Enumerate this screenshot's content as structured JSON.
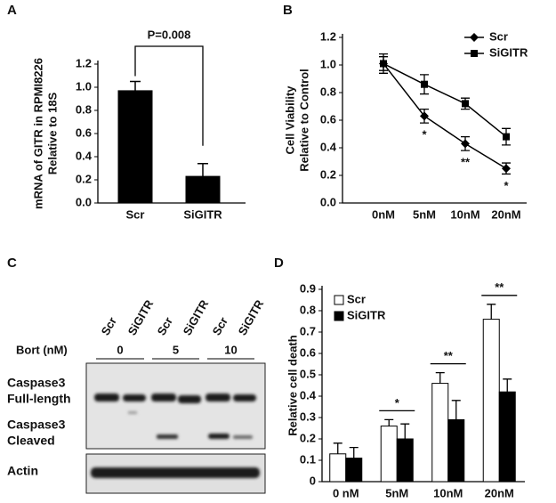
{
  "panel_labels": [
    "A",
    "B",
    "C",
    "D"
  ],
  "chart_data": [
    {
      "type": "bar",
      "ylabel": [
        "mRNA of GITR in RPMI8226",
        "Relative to 18S"
      ],
      "categories": [
        "Scr",
        "SiGITR"
      ],
      "values": [
        0.97,
        0.23
      ],
      "errors": [
        0.08,
        0.11
      ],
      "color": "#000000",
      "ylim": [
        0,
        1.2
      ],
      "yticks": [
        {
          "value": 0,
          "label": "0.0"
        },
        0.2,
        0.4,
        0.6,
        0.8,
        {
          "value": 1,
          "label": "1.0"
        },
        1.2
      ],
      "annotation": "P=0.008"
    },
    {
      "type": "line",
      "ylabel": [
        "Cell Viability",
        "Relative to Control"
      ],
      "categories": [
        "0nM",
        "5nM",
        "10nM",
        "20nM"
      ],
      "series": [
        {
          "name": "Scr",
          "color": "#000000",
          "marker": "diamond",
          "values": [
            1.01,
            0.63,
            0.43,
            0.25
          ],
          "errors": [
            0.05,
            0.05,
            0.05,
            0.04
          ]
        },
        {
          "name": "SiGITR",
          "color": "#000000",
          "marker": "square",
          "values": [
            1.01,
            0.86,
            0.72,
            0.48
          ],
          "errors": [
            0.07,
            0.07,
            0.04,
            0.06
          ]
        }
      ],
      "ylim": [
        0,
        1.2
      ],
      "yticks": [
        {
          "value": 0,
          "label": "0.0"
        },
        0.2,
        0.4,
        0.6,
        0.8,
        {
          "value": 1,
          "label": "1.0"
        },
        1.2
      ],
      "legend": "upper right",
      "annotations": [
        {
          "text": "*",
          "x": "5nM"
        },
        {
          "text": "**",
          "x": "10nM"
        },
        {
          "text": "*",
          "x": "20nM"
        }
      ]
    },
    {
      "type": "bar",
      "ylabel": [
        "Relative cell death"
      ],
      "categories": [
        "0 nM",
        "5nM",
        "10nM",
        "20nM"
      ],
      "series": [
        {
          "name": "Scr",
          "color": "#ffffff",
          "values": [
            0.13,
            0.26,
            0.46,
            0.76
          ],
          "errors": [
            0.05,
            0.03,
            0.05,
            0.07
          ]
        },
        {
          "name": "SiGITR",
          "color": "#000000",
          "values": [
            0.11,
            0.2,
            0.29,
            0.42
          ],
          "errors": [
            0.05,
            0.07,
            0.09,
            0.06
          ]
        }
      ],
      "ylim": [
        0,
        0.9
      ],
      "yticks": [
        0,
        0.1,
        0.2,
        0.3,
        0.4,
        0.5,
        0.6,
        0.7,
        0.8,
        0.9
      ],
      "legend": "upper left",
      "annotations": [
        {
          "text": "*",
          "x": "5nM"
        },
        {
          "text": "**",
          "x": "10nM"
        },
        {
          "text": "**",
          "x": "20nM"
        }
      ]
    }
  ],
  "blot": {
    "lanes": [
      "Scr",
      "SiGITR",
      "Scr",
      "SiGITR",
      "Scr",
      "SiGITR"
    ],
    "treatment": "Bort (nM)",
    "doses": [
      "0",
      "5",
      "10"
    ],
    "rows": [
      [
        "Caspase3",
        "Full-length"
      ],
      [
        "Caspase3",
        "Cleaved"
      ],
      [
        "Actin"
      ]
    ]
  }
}
